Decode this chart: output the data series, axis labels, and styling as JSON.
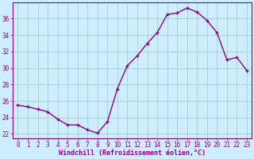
{
  "x": [
    0,
    1,
    2,
    3,
    4,
    5,
    6,
    7,
    8,
    9,
    10,
    11,
    12,
    13,
    14,
    15,
    16,
    17,
    18,
    19,
    20,
    21,
    22,
    23
  ],
  "y": [
    25.5,
    25.3,
    25.0,
    24.7,
    23.8,
    23.1,
    23.1,
    22.5,
    22.1,
    23.5,
    27.5,
    30.3,
    31.5,
    33.0,
    34.3,
    36.5,
    36.7,
    37.3,
    36.8,
    35.8,
    34.3,
    31.0,
    31.3,
    29.7
  ],
  "line_color": "#880088",
  "marker": "+",
  "marker_color": "#880088",
  "bg_color": "#cceeff",
  "grid_color": "#aacccc",
  "xlabel": "Windchill (Refroidissement éolien,°C)",
  "xlabel_color": "#880088",
  "tick_color": "#880088",
  "spine_color": "#880088",
  "ylim": [
    21.5,
    38
  ],
  "xlim": [
    -0.5,
    23.5
  ],
  "yticks": [
    22,
    24,
    26,
    28,
    30,
    32,
    34,
    36
  ],
  "xticks": [
    0,
    1,
    2,
    3,
    4,
    5,
    6,
    7,
    8,
    9,
    10,
    11,
    12,
    13,
    14,
    15,
    16,
    17,
    18,
    19,
    20,
    21,
    22,
    23
  ],
  "xtick_labels": [
    "0",
    "1",
    "2",
    "3",
    "4",
    "5",
    "6",
    "7",
    "8",
    "9",
    "10",
    "11",
    "12",
    "13",
    "14",
    "15",
    "16",
    "17",
    "18",
    "19",
    "20",
    "21",
    "22",
    "23"
  ],
  "ytick_labels": [
    "22",
    "24",
    "26",
    "28",
    "30",
    "32",
    "34",
    "36"
  ],
  "xlabel_fontsize": 6.0,
  "tick_fontsize": 5.5,
  "marker_size": 3.5,
  "linewidth": 1.0
}
